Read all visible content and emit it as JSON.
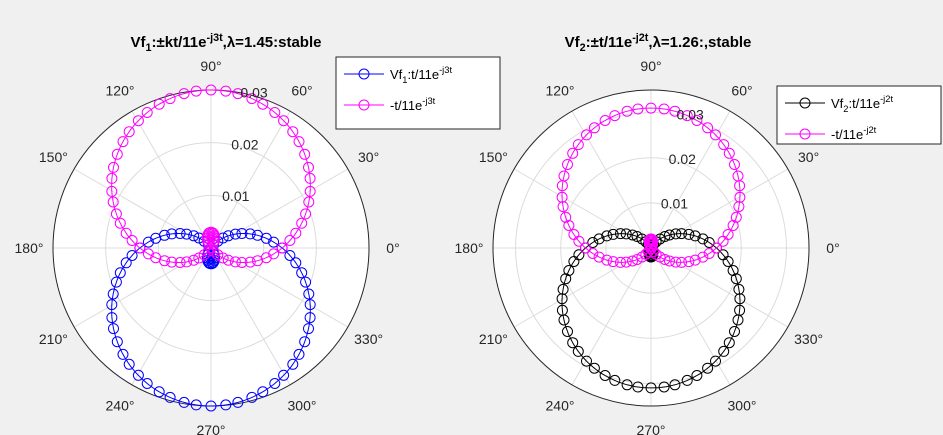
{
  "window": {
    "background": "#f0f0f0"
  },
  "chart_data": [
    {
      "type": "polar",
      "title": {
        "main": "Vf",
        "sub": "1",
        "mid": ":±kt/11e",
        "sup": "-j3t",
        "rest": ",λ=1.45:stable"
      },
      "angle_ticks_deg": [
        0,
        30,
        60,
        90,
        120,
        150,
        180,
        210,
        240,
        270,
        300,
        330
      ],
      "angle_tick_labels": [
        "0°",
        "30°",
        "60°",
        "90°",
        "120°",
        "150°",
        "180°",
        "210°",
        "240°",
        "270°",
        "300°",
        "330°"
      ],
      "r_ticks": [
        0.01,
        0.02,
        0.03
      ],
      "r_tick_labels": [
        "0.01",
        "0.02",
        "0.03"
      ],
      "rlim": [
        0,
        0.03
      ],
      "grid": true,
      "legend_placement": "top-right",
      "series": [
        {
          "legend": {
            "main": "Vf",
            "sub": "1",
            "mid": ":t/11e",
            "sup": "-j3t"
          },
          "color": "#0000ff",
          "marker": "circle",
          "curve": {
            "kind": "rose",
            "amplitude": 0.0135,
            "k": 3,
            "offset": 0.0165,
            "phase_deg": -90,
            "t_range": [
              0,
              6.2832
            ],
            "points": 72
          }
        },
        {
          "legend": {
            "main": "-t/11e",
            "sup": "-j3t"
          },
          "color": "#ff00ff",
          "marker": "circle",
          "curve": {
            "kind": "rose",
            "amplitude": 0.0135,
            "k": 3,
            "offset": 0.0165,
            "phase_deg": 90,
            "t_range": [
              0,
              6.2832
            ],
            "points": 72
          }
        }
      ]
    },
    {
      "type": "polar",
      "title": {
        "main": "Vf",
        "sub": "2",
        "mid": ":±t/11e",
        "sup": "-j2t",
        "rest": ",λ=1.26:,stable"
      },
      "angle_ticks_deg": [
        0,
        30,
        60,
        90,
        120,
        150,
        180,
        210,
        240,
        270,
        300,
        330
      ],
      "angle_tick_labels": [
        "0°",
        "30°",
        "60°",
        "90°",
        "120°",
        "150°",
        "180°",
        "210°",
        "240°",
        "270°",
        "300°",
        "330°"
      ],
      "r_ticks": [
        0.01,
        0.02,
        0.03
      ],
      "r_tick_labels": [
        "0.01",
        "0.02",
        "0.03"
      ],
      "rlim": [
        0,
        0.035
      ],
      "grid": true,
      "legend_placement": "top-right",
      "series": [
        {
          "legend": {
            "main": "Vf",
            "sub": "2",
            "mid": ":t/11e",
            "sup": "-j2t"
          },
          "color": "#000000",
          "marker": "circle",
          "curve": {
            "kind": "rose",
            "amplitude": 0.0145,
            "k": 2,
            "offset": 0.0165,
            "phase_deg": -90,
            "t_range": [
              0,
              6.2832
            ],
            "points": 72
          }
        },
        {
          "legend": {
            "main": "-t/11e",
            "sup": "-j2t"
          },
          "color": "#ff00ff",
          "marker": "circle",
          "curve": {
            "kind": "rose",
            "amplitude": 0.0145,
            "k": 2,
            "offset": 0.0165,
            "phase_deg": 90,
            "t_range": [
              0,
              6.2832
            ],
            "points": 72
          }
        }
      ]
    }
  ]
}
